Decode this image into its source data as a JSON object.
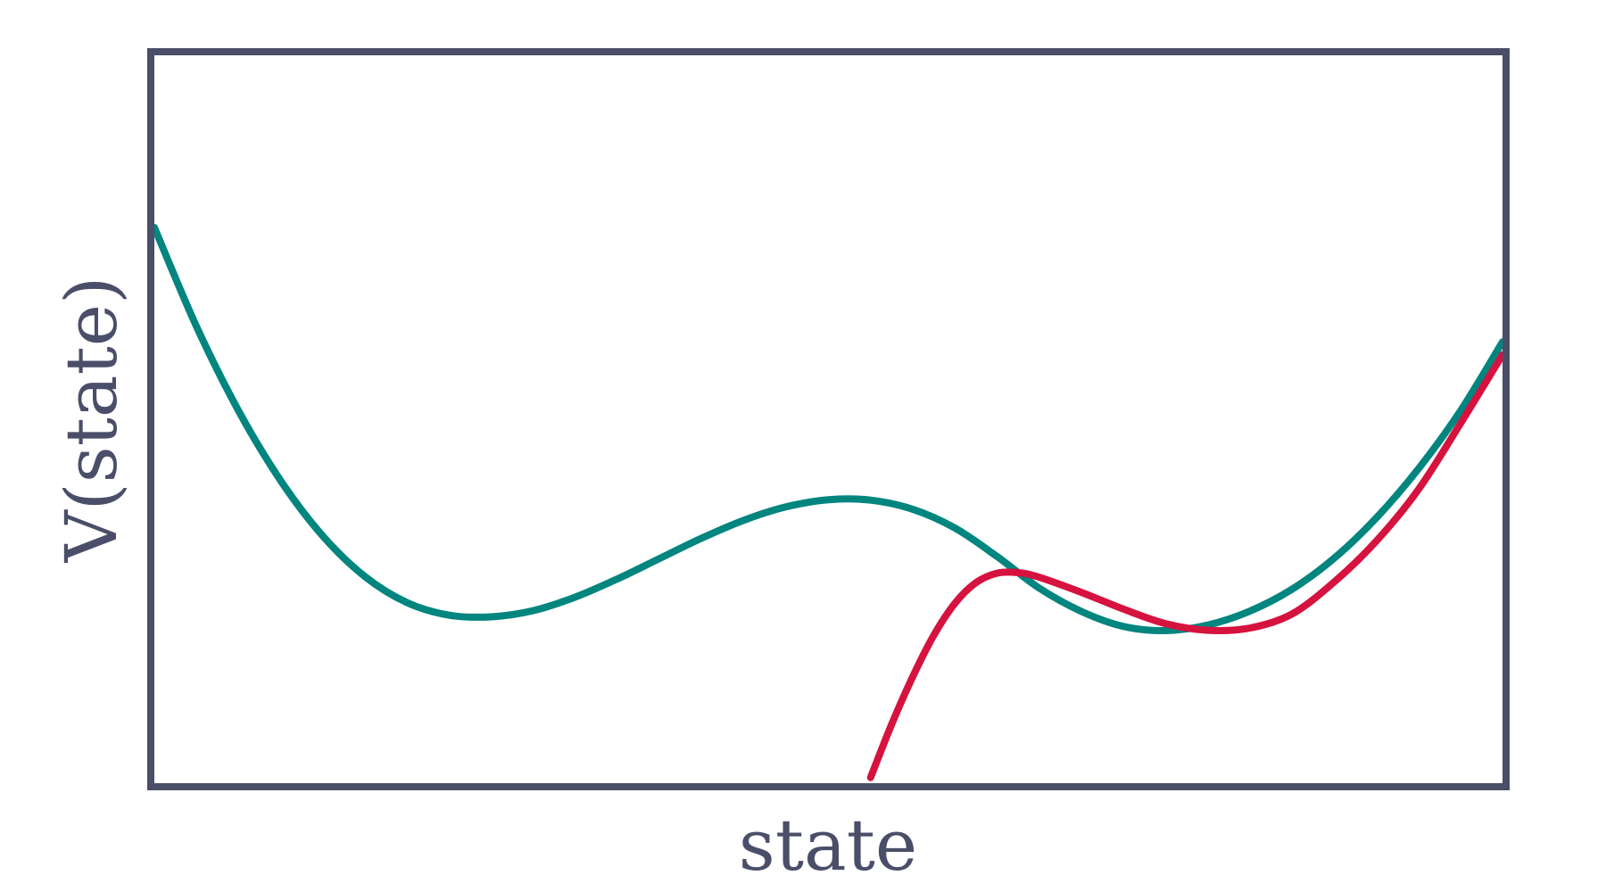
{
  "chart_data": {
    "type": "line",
    "title": "",
    "xlabel": "state",
    "ylabel": "V(state)",
    "xlim": [
      -1.6,
      1.6
    ],
    "ylim": [
      -0.3,
      1.0
    ],
    "grid": false,
    "legend": "none",
    "colors": {
      "frame": "#4a4e69",
      "text": "#4a4e69",
      "teal": "#00857f",
      "red": "#d6123f"
    },
    "series": [
      {
        "color": "#00857f",
        "x": [
          -1.6,
          -1.5,
          -1.4,
          -1.3,
          -1.2,
          -1.1,
          -1.0,
          -0.9,
          -0.8,
          -0.7,
          -0.6,
          -0.5,
          -0.4,
          -0.3,
          -0.2,
          -0.1,
          0.0,
          0.1,
          0.2,
          0.3,
          0.4,
          0.5,
          0.6,
          0.7,
          0.8,
          0.9,
          1.0,
          1.1,
          1.2,
          1.3,
          1.4,
          1.5,
          1.6
        ],
        "y": [
          0.6925,
          0.5156,
          0.3649,
          0.2401,
          0.1413,
          0.0689,
          0.0224,
          0.0,
          -0.0028,
          0.0083,
          0.0326,
          0.0651,
          0.1016,
          0.1379,
          0.1698,
          0.1936,
          0.2063,
          0.2055,
          0.1892,
          0.1558,
          0.105,
          0.0486,
          0.0069,
          -0.02,
          -0.0275,
          -0.0176,
          0.0072,
          0.0462,
          0.1015,
          0.1734,
          0.2611,
          0.3646,
          0.4881
        ]
      },
      {
        "color": "#d6123f",
        "x": [
          0.1,
          0.15,
          0.2,
          0.25,
          0.3,
          0.35,
          0.4,
          0.45,
          0.5,
          0.6,
          0.7,
          0.8,
          0.9,
          1.0,
          1.1,
          1.2,
          1.3,
          1.4,
          1.5,
          1.6
        ],
        "y": [
          -0.29,
          -0.195,
          -0.11,
          -0.036,
          0.021,
          0.058,
          0.075,
          0.076,
          0.068,
          0.041,
          0.011,
          -0.015,
          -0.027,
          -0.023,
          0.002,
          0.059,
          0.132,
          0.224,
          0.342,
          0.465
        ]
      }
    ]
  }
}
